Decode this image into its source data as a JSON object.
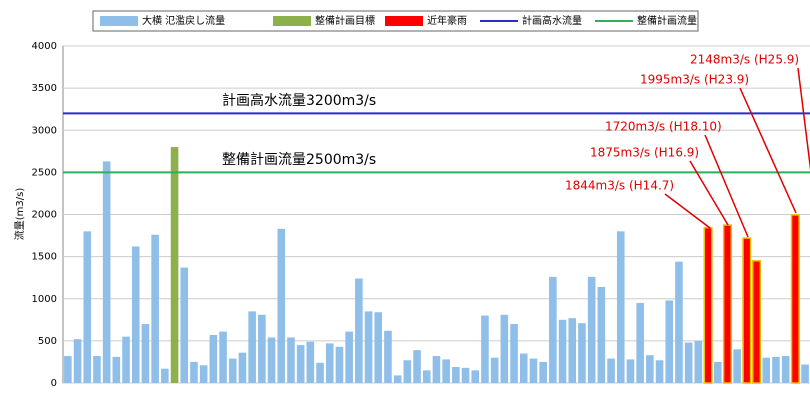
{
  "chart_data": {
    "type": "bar",
    "y_label": "流量(m3/s)",
    "categories": [
      null,
      null,
      null,
      null,
      null,
      null,
      null,
      null,
      null,
      null,
      null,
      null,
      null,
      null,
      null,
      null,
      null,
      null,
      null,
      null,
      null,
      null,
      null,
      null,
      null,
      null,
      null,
      null,
      null,
      null,
      null,
      null,
      null,
      null,
      null,
      null,
      null,
      null,
      null,
      null,
      null,
      null,
      null,
      null,
      null,
      null,
      null,
      null,
      null,
      null,
      null,
      null,
      null,
      null,
      null,
      null,
      null,
      null,
      null,
      null,
      null,
      null,
      null,
      null,
      null,
      null,
      null,
      null,
      null,
      null,
      null,
      null,
      null,
      null,
      null,
      null,
      null
    ],
    "series": [
      {
        "name": "大横 氾濫戻し流量",
        "color": "#8fbfe8",
        "values": [
          320,
          520,
          1800,
          320,
          2630,
          310,
          550,
          1620,
          700,
          1760,
          170,
          null,
          1370,
          250,
          210,
          570,
          610,
          290,
          360,
          850,
          810,
          540,
          1830,
          540,
          450,
          490,
          240,
          470,
          430,
          610,
          1240,
          850,
          840,
          620,
          90,
          270,
          390,
          150,
          320,
          280,
          190,
          180,
          150,
          800,
          300,
          810,
          700,
          350,
          290,
          250,
          1260,
          750,
          770,
          710,
          1260,
          1140,
          290,
          1800,
          280,
          950,
          330,
          270,
          980,
          1440,
          480,
          500,
          null,
          250,
          null,
          400,
          null,
          null,
          300,
          310,
          320,
          null,
          220
        ]
      },
      {
        "name": "整備計画目標",
        "color": "#8db04a",
        "values": [
          null,
          null,
          null,
          null,
          null,
          null,
          null,
          null,
          null,
          null,
          null,
          2800,
          null,
          null,
          null,
          null,
          null,
          null,
          null,
          null,
          null,
          null,
          null,
          null,
          null,
          null,
          null,
          null,
          null,
          null,
          null,
          null,
          null,
          null,
          null,
          null,
          null,
          null,
          null,
          null,
          null,
          null,
          null,
          null,
          null,
          null,
          null,
          null,
          null,
          null,
          null,
          null,
          null,
          null,
          null,
          null,
          null,
          null,
          null,
          null,
          null,
          null,
          null,
          null,
          null,
          null,
          null,
          null,
          null,
          null,
          null,
          null,
          null,
          null,
          null,
          null,
          null
        ]
      },
      {
        "name": "近年豪雨",
        "color": "#ff0000",
        "values": [
          null,
          null,
          null,
          null,
          null,
          null,
          null,
          null,
          null,
          null,
          null,
          null,
          null,
          null,
          null,
          null,
          null,
          null,
          null,
          null,
          null,
          null,
          null,
          null,
          null,
          null,
          null,
          null,
          null,
          null,
          null,
          null,
          null,
          null,
          null,
          null,
          null,
          null,
          null,
          null,
          null,
          null,
          null,
          null,
          null,
          null,
          null,
          null,
          null,
          null,
          null,
          null,
          null,
          null,
          null,
          null,
          null,
          null,
          null,
          null,
          null,
          null,
          null,
          null,
          null,
          null,
          1844,
          null,
          1875,
          null,
          1720,
          1450,
          null,
          null,
          null,
          1995,
          null
        ]
      }
    ],
    "reference_lines": [
      {
        "name": "計画高水流量",
        "value": 3200,
        "color": "#2b2bd0",
        "label": "計画高水流量3200m3/s"
      },
      {
        "name": "整備計画流量",
        "value": 2500,
        "color": "#2eb05a",
        "label": "整備計画流量2500m3/s"
      }
    ],
    "annotations": [
      "2148m3/s (H25.9)",
      "1995m3/s (H23.9)",
      "1720m3/s (H18.10)",
      "1875m3/s (H16.9)",
      "1844m3/s (H14.7)"
    ],
    "ylim": [
      0,
      4000
    ],
    "yticks": [
      0,
      500,
      1000,
      1500,
      2000,
      2500,
      3000,
      3500,
      4000
    ],
    "grid": true
  }
}
